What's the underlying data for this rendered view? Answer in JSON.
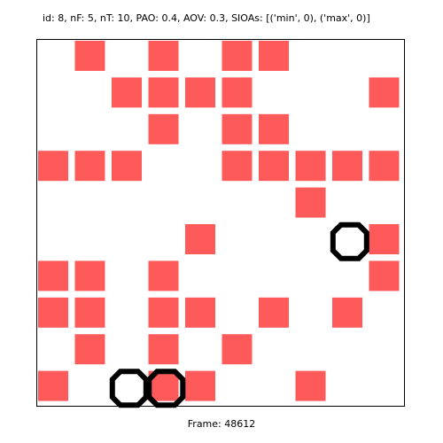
{
  "header_text": "id: 8, nF: 5, nT: 10, PAO: 0.4, AOV: 0.3, SIOAs: [('min', 0), ('max', 0)]",
  "footer_text": "Frame: 48612",
  "colors": {
    "cell": "#ff5a5a",
    "agent_ring": "#000000",
    "frame": "#000000",
    "background": "#ffffff"
  },
  "grid": {
    "rows": 10,
    "cols": 10,
    "red_cells": [
      [
        0,
        1
      ],
      [
        0,
        3
      ],
      [
        0,
        5
      ],
      [
        0,
        6
      ],
      [
        1,
        2
      ],
      [
        1,
        3
      ],
      [
        1,
        4
      ],
      [
        1,
        5
      ],
      [
        1,
        9
      ],
      [
        2,
        3
      ],
      [
        2,
        5
      ],
      [
        2,
        6
      ],
      [
        3,
        0
      ],
      [
        3,
        1
      ],
      [
        3,
        2
      ],
      [
        3,
        5
      ],
      [
        3,
        6
      ],
      [
        3,
        7
      ],
      [
        3,
        8
      ],
      [
        3,
        9
      ],
      [
        4,
        7
      ],
      [
        5,
        4
      ],
      [
        5,
        9
      ],
      [
        6,
        0
      ],
      [
        6,
        1
      ],
      [
        6,
        3
      ],
      [
        6,
        9
      ],
      [
        7,
        0
      ],
      [
        7,
        1
      ],
      [
        7,
        3
      ],
      [
        7,
        4
      ],
      [
        7,
        6
      ],
      [
        7,
        8
      ],
      [
        8,
        1
      ],
      [
        8,
        3
      ],
      [
        8,
        5
      ],
      [
        9,
        0
      ],
      [
        9,
        3
      ],
      [
        9,
        4
      ],
      [
        9,
        7
      ]
    ],
    "agents": [
      [
        5,
        8
      ],
      [
        9,
        2
      ],
      [
        9,
        3
      ]
    ]
  }
}
